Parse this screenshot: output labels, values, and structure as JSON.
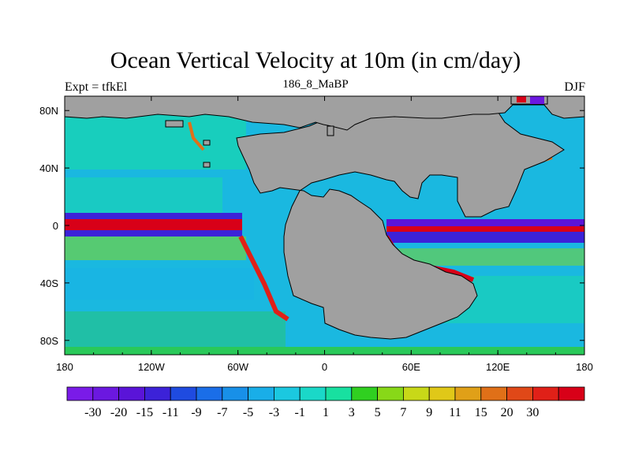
{
  "title": "Ocean Vertical Velocity at 10m (in cm/day)",
  "left_subtitle": "Expt = tfkEl",
  "center_subtitle": "186_8_MaBP",
  "right_subtitle": "DJF",
  "map": {
    "lon_range": [
      -180,
      180
    ],
    "lat_range": [
      -90,
      90
    ],
    "x_ticks": [
      {
        "value": -180,
        "label": "180"
      },
      {
        "value": -120,
        "label": "120W"
      },
      {
        "value": -60,
        "label": "60W"
      },
      {
        "value": 0,
        "label": "0"
      },
      {
        "value": 60,
        "label": "60E"
      },
      {
        "value": 120,
        "label": "120E"
      },
      {
        "value": 180,
        "label": "180"
      }
    ],
    "y_ticks": [
      {
        "value": 80,
        "label": "80N"
      },
      {
        "value": 40,
        "label": "40N"
      },
      {
        "value": 0,
        "label": "0"
      },
      {
        "value": -40,
        "label": "40S"
      },
      {
        "value": -80,
        "label": "80S"
      }
    ],
    "land_color": "#a0a0a0",
    "ocean_background_color": "#1ab8e0"
  },
  "colorbar": {
    "colors": [
      "#7a1be8",
      "#6b18e0",
      "#5a14d8",
      "#3c22d8",
      "#1f4be0",
      "#1a6ee8",
      "#1890e8",
      "#19aee8",
      "#1bc8e0",
      "#1ad8c8",
      "#18e0a0",
      "#30d020",
      "#88d818",
      "#c8d818",
      "#e0c818",
      "#e0a018",
      "#e07018",
      "#e04818",
      "#e02018",
      "#d80018"
    ],
    "labels": [
      "-30",
      "-20",
      "-15",
      "-11",
      "-9",
      "-7",
      "-5",
      "-3",
      "-1",
      "1",
      "3",
      "5",
      "7",
      "9",
      "11",
      "15",
      "20",
      "30"
    ]
  }
}
